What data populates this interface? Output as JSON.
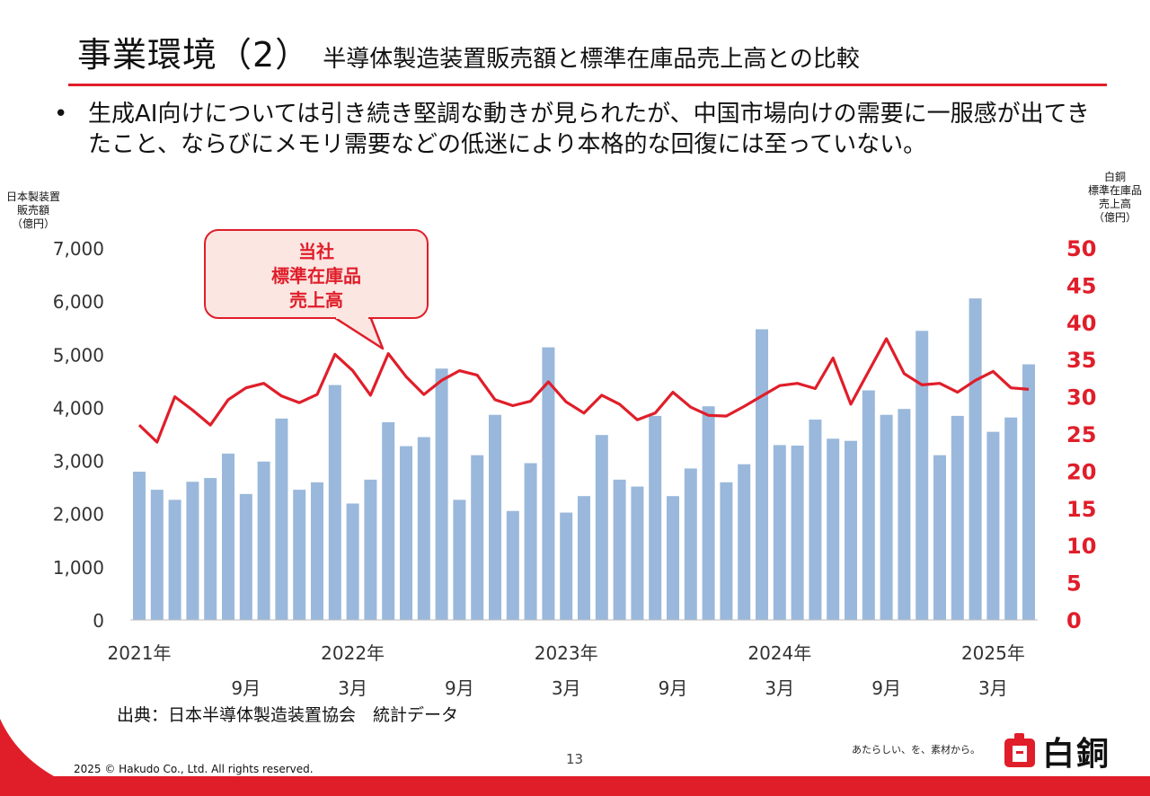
{
  "header": {
    "title": "事業環境（2）",
    "subtitle": "半導体製造装置販売額と標準在庫品売上高との比較"
  },
  "bullet": {
    "mark": "•",
    "text": "生成AI向けについては引き続き堅調な動きが見られたが、中国市場向けの需要に一服感が出てきたこと、ならびにメモリ需要などの低迷により本格的な回復には至っていない。"
  },
  "callout": {
    "line1": "当社",
    "line2": "標準在庫品",
    "line3": "売上高"
  },
  "footer": {
    "source": "出典：日本半導体製造装置協会　統計データ",
    "page_number": "13",
    "copyright": "2025 © Hakudo Co., Ltd. All rights reserved.",
    "tagline": "あたらしい、を、素材から。",
    "logo_text": "白銅"
  },
  "colors": {
    "accent": "#e01e2a",
    "bar": "#9ab8db",
    "axis_text_left": "#333333",
    "axis_text_right": "#e01e2a"
  },
  "chart_data": {
    "type": "bar",
    "left_axis_label": [
      "日本製装置",
      "販売額",
      "（億円）"
    ],
    "right_axis_label": [
      "白銅",
      "標準在庫品",
      "売上高",
      "（億円）"
    ],
    "ylim_left": [
      0,
      7000
    ],
    "ylim_right": [
      0,
      50
    ],
    "left_ticks": [
      "0",
      "1,000",
      "2,000",
      "3,000",
      "4,000",
      "5,000",
      "6,000",
      "7,000"
    ],
    "right_ticks": [
      "0",
      "5",
      "10",
      "15",
      "20",
      "25",
      "30",
      "35",
      "40",
      "45",
      "50"
    ],
    "x_labels": [
      {
        "index": 0,
        "text": "2021年",
        "row": 1
      },
      {
        "index": 12,
        "text": "2022年",
        "row": 1
      },
      {
        "index": 24,
        "text": "2023年",
        "row": 1
      },
      {
        "index": 36,
        "text": "2024年",
        "row": 1
      },
      {
        "index": 48,
        "text": "2025年",
        "row": 1
      },
      {
        "index": 6,
        "text": "9月",
        "row": 2
      },
      {
        "index": 12,
        "text": "3月",
        "row": 2
      },
      {
        "index": 18,
        "text": "9月",
        "row": 2
      },
      {
        "index": 24,
        "text": "3月",
        "row": 2
      },
      {
        "index": 30,
        "text": "9月",
        "row": 2
      },
      {
        "index": 36,
        "text": "3月",
        "row": 2
      },
      {
        "index": 42,
        "text": "9月",
        "row": 2
      },
      {
        "index": 48,
        "text": "3月",
        "row": 2
      }
    ],
    "series": [
      {
        "type": "bar",
        "axis": "left",
        "values": [
          2790,
          2450,
          2260,
          2600,
          2670,
          3130,
          2370,
          2980,
          3790,
          2450,
          2590,
          4420,
          2190,
          2640,
          3720,
          3270,
          3440,
          4730,
          2260,
          3100,
          3860,
          2050,
          2950,
          5130,
          2020,
          2330,
          3480,
          2640,
          2510,
          3840,
          2330,
          2850,
          4020,
          2590,
          2930,
          5470,
          3290,
          3280,
          3770,
          3410,
          3370,
          4320,
          3860,
          3970,
          5440,
          3100,
          3840,
          6050,
          3540,
          3810,
          4810
        ]
      },
      {
        "type": "line",
        "axis": "right",
        "values": [
          26.2,
          23.9,
          30.0,
          28.2,
          26.2,
          29.6,
          31.2,
          31.8,
          30.1,
          29.2,
          30.3,
          35.7,
          33.5,
          30.2,
          35.8,
          32.7,
          30.3,
          32.2,
          33.5,
          32.9,
          29.6,
          28.8,
          29.4,
          32.0,
          29.3,
          27.8,
          30.2,
          29.0,
          26.9,
          27.8,
          30.6,
          28.6,
          27.5,
          27.4,
          28.7,
          30.1,
          31.5,
          31.8,
          31.1,
          35.2,
          29.0,
          33.4,
          37.8,
          33.1,
          31.6,
          31.8,
          30.6,
          32.2,
          33.4,
          31.2,
          31.0
        ]
      }
    ]
  }
}
